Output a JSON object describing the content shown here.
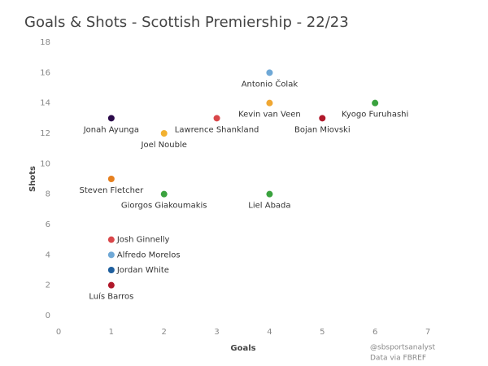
{
  "chart_data": {
    "type": "scatter",
    "title": "Goals & Shots - Scottish Premiership - 22/23",
    "x_label": "Goals",
    "y_label": "Shots",
    "xlim": [
      0,
      7
    ],
    "xticks": [
      0,
      1,
      2,
      3,
      4,
      5,
      6,
      7
    ],
    "ylim": [
      0,
      18
    ],
    "yticks": [
      0,
      2,
      4,
      6,
      8,
      10,
      12,
      14,
      16,
      18
    ],
    "grid": false,
    "points": [
      {
        "name": "Antonio Čolak",
        "x": 4,
        "y": 16,
        "color": "#6fa8d6"
      },
      {
        "name": "Kevin van Veen",
        "x": 4,
        "y": 14,
        "color": "#f0a732"
      },
      {
        "name": "Kyogo Furuhashi",
        "x": 6,
        "y": 14,
        "color": "#3aa23e"
      },
      {
        "name": "Lawrence Shankland",
        "x": 3,
        "y": 13,
        "color": "#d9474a"
      },
      {
        "name": "Bojan Miovski",
        "x": 5,
        "y": 13,
        "color": "#b0182a"
      },
      {
        "name": "Jonah Ayunga",
        "x": 1,
        "y": 13,
        "color": "#2b0a4a"
      },
      {
        "name": "Joel Nouble",
        "x": 2,
        "y": 12,
        "color": "#f2b130"
      },
      {
        "name": "Steven Fletcher",
        "x": 1,
        "y": 9,
        "color": "#e6801f"
      },
      {
        "name": "Giorgos Giakoumakis",
        "x": 2,
        "y": 8,
        "color": "#3aa23e"
      },
      {
        "name": "Liel Abada",
        "x": 4,
        "y": 8,
        "color": "#3aa23e"
      },
      {
        "name": "Josh Ginnelly",
        "x": 1,
        "y": 5,
        "color": "#d9474a"
      },
      {
        "name": "Alfredo Morelos",
        "x": 1,
        "y": 4,
        "color": "#6fa8d6"
      },
      {
        "name": "Jordan White",
        "x": 1,
        "y": 3,
        "color": "#1f5f9e"
      },
      {
        "name": "Luís Barros",
        "x": 1,
        "y": 2,
        "color": "#b0182a"
      }
    ],
    "footnotes": [
      "@sbsportsanalyst",
      "Data via FBREF"
    ]
  }
}
